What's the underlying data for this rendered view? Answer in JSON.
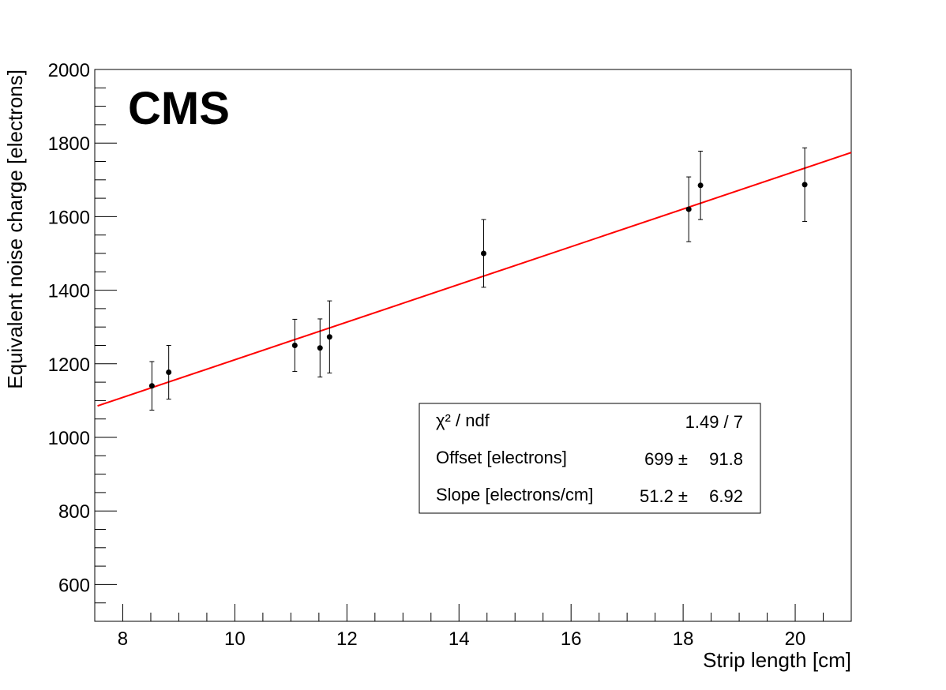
{
  "chart_data": {
    "type": "scatter",
    "title": "",
    "label": "CMS",
    "xlabel": "Strip length [cm]",
    "ylabel": "Equivalent noise charge [electrons]",
    "xlim": [
      7.5,
      21
    ],
    "ylim": [
      500,
      2000
    ],
    "xticks": [
      8,
      10,
      12,
      14,
      16,
      18,
      20
    ],
    "yticks": [
      600,
      800,
      1000,
      1200,
      1400,
      1600,
      1800,
      2000
    ],
    "grid": false,
    "points": [
      {
        "x": 8.52,
        "y": 1140,
        "err": 66
      },
      {
        "x": 8.82,
        "y": 1177,
        "err": 73
      },
      {
        "x": 11.07,
        "y": 1250,
        "err": 71
      },
      {
        "x": 11.52,
        "y": 1243,
        "err": 79
      },
      {
        "x": 11.69,
        "y": 1273,
        "err": 98
      },
      {
        "x": 14.44,
        "y": 1500,
        "err": 92
      },
      {
        "x": 18.1,
        "y": 1620,
        "err": 88
      },
      {
        "x": 18.31,
        "y": 1685,
        "err": 93
      },
      {
        "x": 20.17,
        "y": 1687,
        "err": 100
      }
    ],
    "fit": {
      "offset": 699,
      "slope": 51.2,
      "x_range": [
        7.55,
        21
      ],
      "color": "#ff0000"
    },
    "stats_box": {
      "rows": [
        {
          "label": "χ² / ndf",
          "value": "1.49 / 7",
          "error": ""
        },
        {
          "label": "Offset [electrons]",
          "value": "699 ±",
          "error": "91.8"
        },
        {
          "label": "Slope [electrons/cm]",
          "value": "51.2 ±",
          "error": "6.92"
        }
      ]
    },
    "marker_color": "#000000"
  }
}
